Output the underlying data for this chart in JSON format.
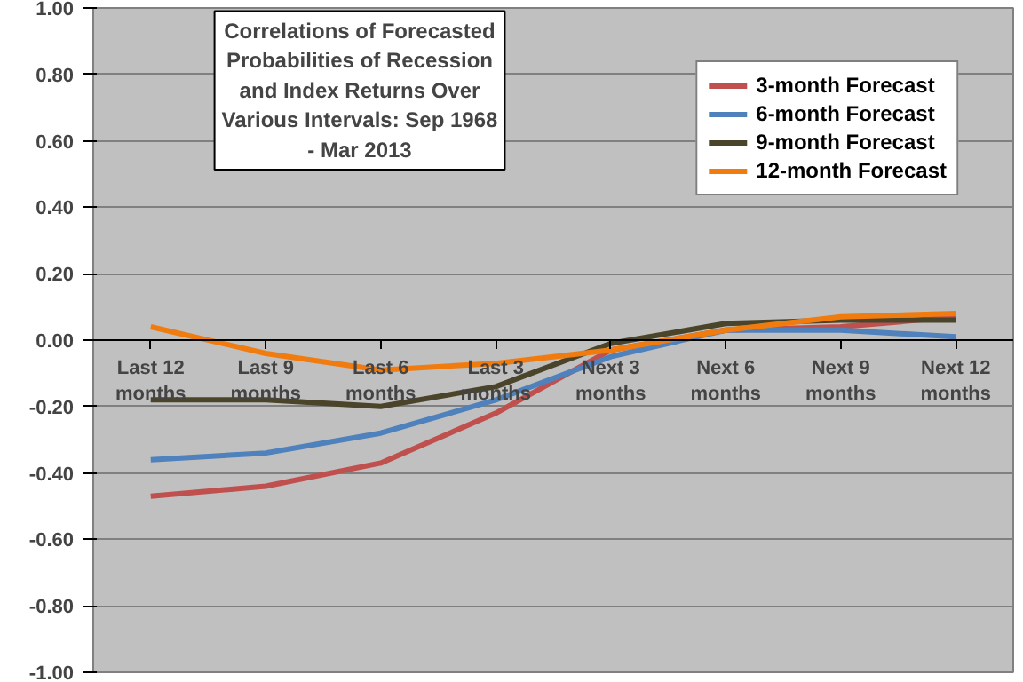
{
  "chart_data": {
    "type": "line",
    "title": "Correlations of Forecasted Probabilities of Recession and Index Returns Over Various Intervals: Sep 1968 - Mar 2013",
    "categories": [
      "Last 12 months",
      "Last 9 months",
      "Last 6 months",
      "Last 3 months",
      "Next 3 months",
      "Next 6 months",
      "Next 9 months",
      "Next 12 months"
    ],
    "series": [
      {
        "name": "3-month Forecast",
        "color": "#c0504d",
        "values": [
          -0.47,
          -0.44,
          -0.37,
          -0.22,
          -0.03,
          0.03,
          0.04,
          0.07
        ]
      },
      {
        "name": "6-month Forecast",
        "color": "#4f81bd",
        "values": [
          -0.36,
          -0.34,
          -0.28,
          -0.18,
          -0.05,
          0.03,
          0.03,
          0.01
        ]
      },
      {
        "name": "9-month Forecast",
        "color": "#4a452a",
        "values": [
          -0.18,
          -0.18,
          -0.2,
          -0.14,
          -0.01,
          0.05,
          0.06,
          0.06
        ]
      },
      {
        "name": "12-month Forecast",
        "color": "#f07c10",
        "values": [
          0.04,
          -0.04,
          -0.09,
          -0.07,
          -0.03,
          0.03,
          0.07,
          0.08
        ]
      }
    ],
    "ylim": [
      -1,
      1
    ],
    "yticks": [
      {
        "value": 1,
        "label": "1.00"
      },
      {
        "value": 0.8,
        "label": "0.80"
      },
      {
        "value": 0.6,
        "label": "0.60"
      },
      {
        "value": 0.4,
        "label": "0.40"
      },
      {
        "value": 0.2,
        "label": "0.20"
      },
      {
        "value": 0,
        "label": "0.00"
      },
      {
        "value": -0.2,
        "label": "-0.20"
      },
      {
        "value": -0.4,
        "label": "-0.40"
      },
      {
        "value": -0.6,
        "label": "-0.60"
      },
      {
        "value": -0.8,
        "label": "-0.80"
      },
      {
        "value": -1,
        "label": "-1.00"
      }
    ],
    "grid": "y",
    "legend": "top right",
    "marker": "none",
    "line_style": "solid"
  }
}
